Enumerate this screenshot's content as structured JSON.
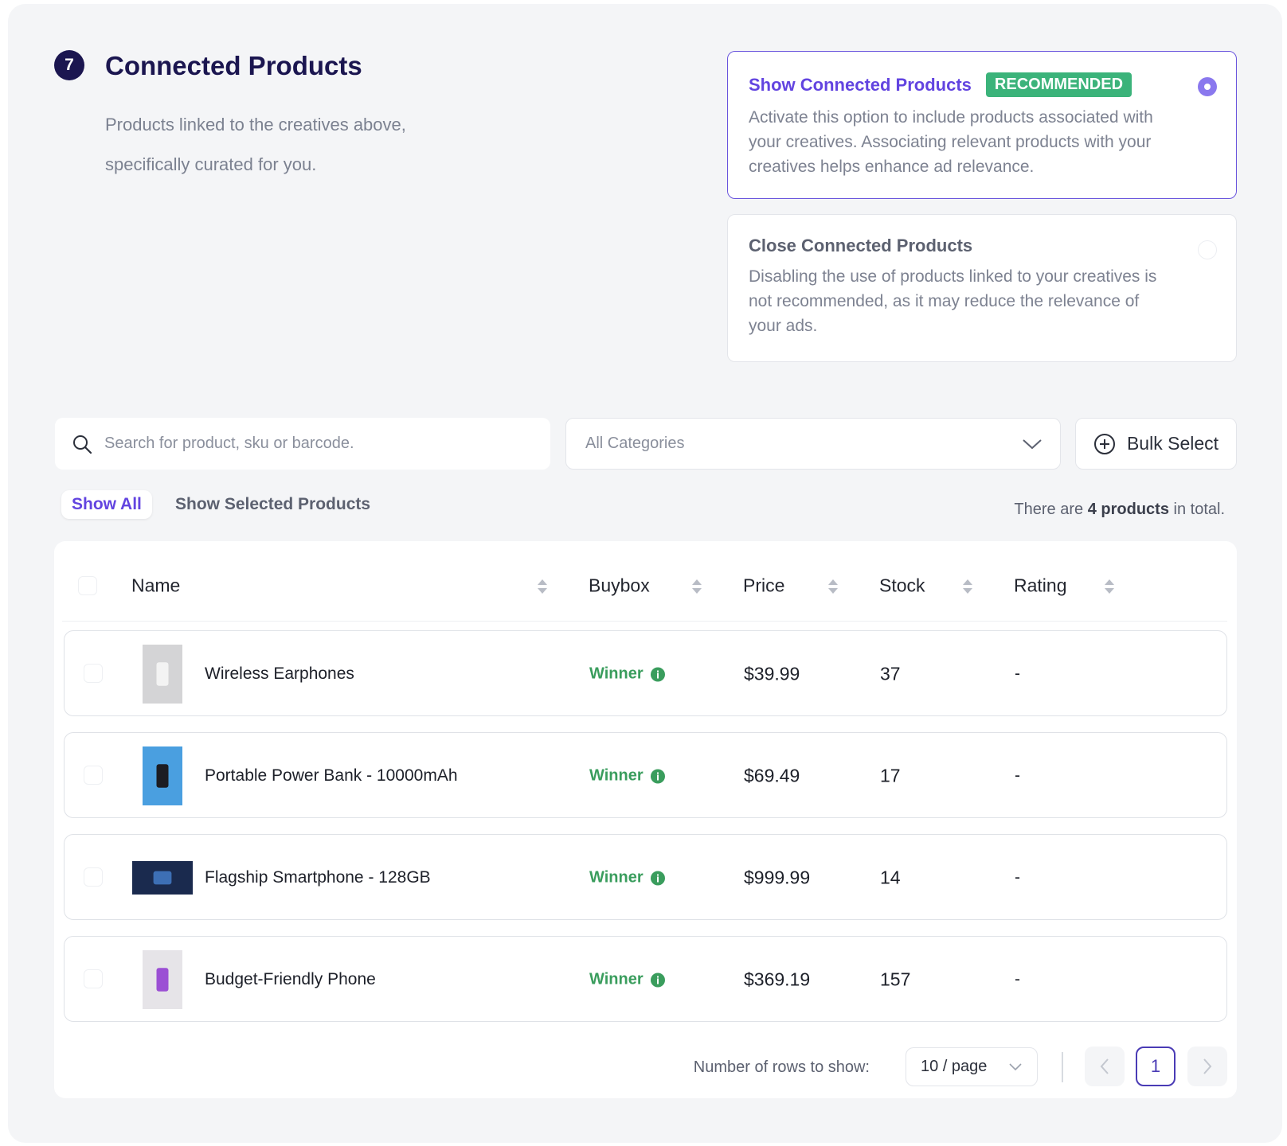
{
  "section": {
    "number": "7",
    "title": "Connected Products",
    "description": "Products linked to the creatives above, specifically curated for you."
  },
  "options": [
    {
      "title": "Show Connected Products",
      "badge": "RECOMMENDED",
      "description": "Activate this option to include products associated with your creatives. Associating relevant products with your creatives helps enhance ad relevance.",
      "selected": true
    },
    {
      "title": "Close Connected Products",
      "description": "Disabling the use of products linked to your creatives is not recommended, as it may reduce the relevance of your ads.",
      "selected": false
    }
  ],
  "search": {
    "placeholder": "Search for product, sku or barcode."
  },
  "category_filter": "All Categories",
  "bulk_select": "Bulk Select",
  "tabs": [
    "Show All",
    "Show Selected Products"
  ],
  "total": {
    "prefix": "There are",
    "count": "4 products",
    "suffix": "in total."
  },
  "table": {
    "columns": [
      "Name",
      "Buybox",
      "Price",
      "Stock",
      "Rating"
    ],
    "rows": [
      [
        "Wireless Earphones",
        "Winner",
        "$39.99",
        "37",
        "-"
      ],
      [
        "Portable Power Bank - 10000mAh",
        "Winner",
        "$69.49",
        "17",
        "-"
      ],
      [
        "Flagship Smartphone - 128GB",
        "Winner",
        "$999.99",
        "14",
        "-"
      ],
      [
        "Budget-Friendly Phone",
        "Winner",
        "$369.19",
        "157",
        "-"
      ]
    ]
  },
  "pagination": {
    "rows_label": "Number of rows to show:",
    "page_size": "10 / page",
    "current_page": "1"
  }
}
